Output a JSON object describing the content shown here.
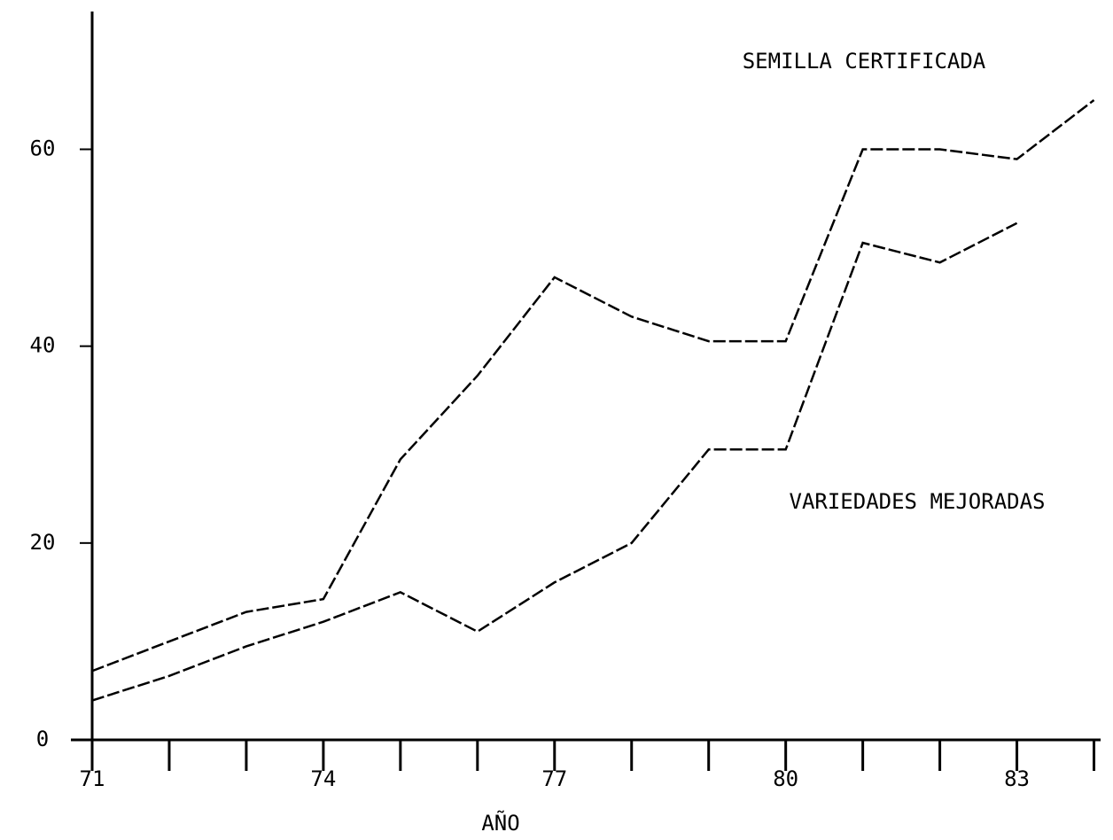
{
  "chart_data": {
    "type": "line",
    "xlabel": "AÑO",
    "x": [
      71,
      72,
      73,
      74,
      75,
      76,
      77,
      78,
      79,
      80,
      81,
      82,
      83,
      84
    ],
    "series": [
      {
        "name": "SEMILLA CERTIFICADA",
        "color": "#000000",
        "values": [
          7,
          10,
          13,
          14.3,
          28.5,
          37,
          47,
          43,
          40.5,
          40.5,
          60,
          60,
          59,
          65
        ]
      },
      {
        "name": "VARIEDADES MEJORADAS",
        "color": "#000000",
        "values": [
          4,
          6.5,
          9.5,
          12,
          15,
          11,
          16,
          20,
          29.5,
          29.5,
          50.5,
          48.5,
          52.5,
          null
        ]
      }
    ],
    "xlim": [
      71,
      84.5
    ],
    "xticks": [
      71,
      74,
      77,
      80,
      83
    ],
    "xminor_ticks": [
      71,
      72,
      73,
      74,
      75,
      76,
      77,
      78,
      79,
      80,
      81,
      82,
      83,
      84
    ],
    "ylim": [
      0,
      74
    ],
    "yticks": [
      0,
      20,
      40,
      60
    ],
    "grid": false
  }
}
